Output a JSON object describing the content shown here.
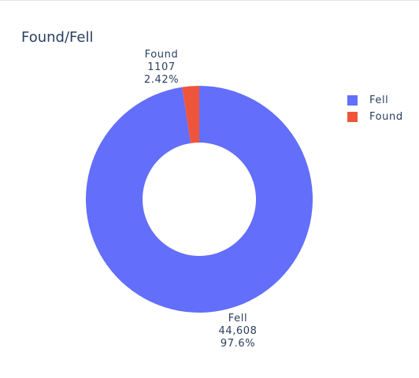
{
  "chart_data": {
    "type": "pie",
    "hole": true,
    "title": "Found/Fell",
    "legend_position": "right",
    "slices": [
      {
        "label": "Fell",
        "value": 44608,
        "value_text": "44,608",
        "percent_text": "97.6%",
        "color": "#636efa"
      },
      {
        "label": "Found",
        "value": 1107,
        "value_text": "1107",
        "percent_text": "2.42%",
        "color": "#ef553b"
      }
    ]
  }
}
